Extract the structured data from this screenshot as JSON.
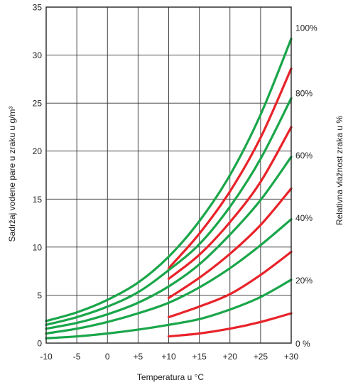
{
  "chart_data": {
    "type": "line",
    "title": "",
    "xlabel": "Temperatura u °C",
    "ylabel": "Sadržaj vodene pare u zraku u g/m³",
    "y2label": "Relativna vlažnost zraka u %",
    "xlim": [
      -10,
      30
    ],
    "ylim": [
      0,
      35
    ],
    "grid": true,
    "x_ticks": [
      -10,
      -5,
      0,
      5,
      10,
      15,
      20,
      25,
      30
    ],
    "x_tick_labels": [
      "-10",
      "-5",
      "0",
      "+5",
      "+10",
      "+15",
      "+20",
      "+25",
      "+30"
    ],
    "y_ticks": [
      0,
      5,
      10,
      15,
      20,
      25,
      30,
      35
    ],
    "y_tick_labels": [
      "0",
      "5",
      "10",
      "15",
      "20",
      "25",
      "30",
      "35"
    ],
    "rh_labels": [
      {
        "label": "100%",
        "y": 32.9
      },
      {
        "label": "80%",
        "y": 26.1
      },
      {
        "label": "60%",
        "y": 19.6
      },
      {
        "label": "40%",
        "y": 13.1
      },
      {
        "label": "20%",
        "y": 6.6
      },
      {
        "label": "0 %",
        "y": 0
      }
    ],
    "colors": {
      "green": "#1aa64a",
      "red": "#e8232a",
      "axis": "#222222",
      "grid": "#333333"
    },
    "series": [
      {
        "color": "green",
        "x": [
          -10,
          -5,
          0,
          5,
          10,
          15,
          20,
          25,
          30
        ],
        "y": [
          2.3,
          3.2,
          4.5,
          6.3,
          9.0,
          12.7,
          17.5,
          23.8,
          31.7
        ]
      },
      {
        "color": "red",
        "x": [
          10,
          15,
          20,
          25,
          30
        ],
        "y": [
          7.8,
          11.4,
          15.8,
          21.4,
          28.6
        ]
      },
      {
        "color": "green",
        "x": [
          -10,
          -5,
          0,
          5,
          10,
          15,
          20,
          25,
          30
        ],
        "y": [
          1.9,
          2.7,
          3.8,
          5.3,
          7.6,
          10.3,
          14.2,
          19.2,
          25.5
        ]
      },
      {
        "color": "red",
        "x": [
          10,
          15,
          20,
          25,
          30
        ],
        "y": [
          6.7,
          9.2,
          12.6,
          16.8,
          22.5
        ]
      },
      {
        "color": "green",
        "x": [
          -10,
          -5,
          0,
          5,
          10,
          15,
          20,
          25,
          30
        ],
        "y": [
          1.5,
          2.1,
          3.0,
          4.2,
          5.9,
          8.2,
          11.3,
          14.9,
          19.4
        ]
      },
      {
        "color": "red",
        "x": [
          10,
          15,
          20,
          25,
          30
        ],
        "y": [
          4.7,
          6.8,
          9.3,
          12.3,
          16.1
        ]
      },
      {
        "color": "green",
        "x": [
          -10,
          -5,
          0,
          5,
          10,
          15,
          20,
          25,
          30
        ],
        "y": [
          1.0,
          1.5,
          2.2,
          3.1,
          4.2,
          5.8,
          7.8,
          10.2,
          12.9
        ]
      },
      {
        "color": "red",
        "x": [
          10,
          15,
          20,
          25,
          30
        ],
        "y": [
          2.7,
          3.8,
          5.1,
          7.1,
          9.5
        ]
      },
      {
        "color": "green",
        "x": [
          -10,
          -5,
          0,
          5,
          10,
          15,
          20,
          25,
          30
        ],
        "y": [
          0.5,
          0.7,
          1.0,
          1.4,
          1.9,
          2.5,
          3.5,
          4.8,
          6.6
        ]
      },
      {
        "color": "red",
        "x": [
          10,
          15,
          20,
          25,
          30
        ],
        "y": [
          0.7,
          1.0,
          1.5,
          2.2,
          3.1
        ]
      }
    ]
  }
}
